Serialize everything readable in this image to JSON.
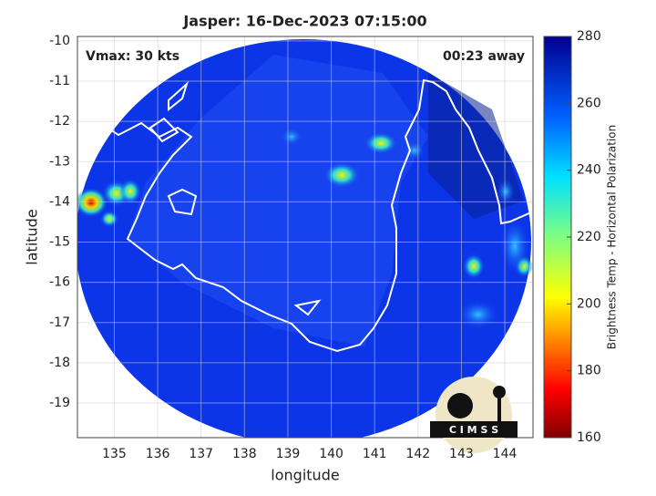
{
  "chart_data": {
    "type": "map",
    "title": "Jasper: 16-Dec-2023 07:15:00",
    "annotations": [
      "Vmax: 30 kts",
      "00:23 away"
    ],
    "xlabel": "longitude",
    "ylabel": "latitude",
    "xlim": [
      134.15,
      144.65
    ],
    "xticks": [
      135,
      136,
      137,
      138,
      139,
      140,
      141,
      142,
      143,
      144
    ],
    "ylim": [
      -19.86,
      -9.89
    ],
    "yticks": [
      -19,
      -18,
      -17,
      -16,
      -15,
      -14,
      -13,
      -12,
      -11,
      -10
    ],
    "grid": true,
    "colorbar": {
      "label": "Brightness Temp - Horizontal Polarization",
      "lim": [
        160,
        280
      ],
      "ticks": [
        160,
        180,
        200,
        220,
        240,
        260,
        280
      ]
    },
    "logo_text": "C I M S S"
  }
}
